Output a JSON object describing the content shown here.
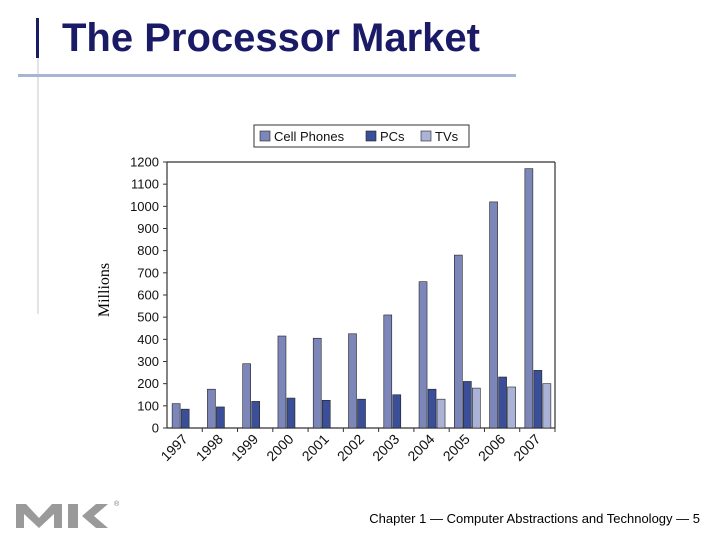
{
  "slide": {
    "title": "The Processor Market",
    "footer": "Chapter 1 — Computer Abstractions and Technology — 5",
    "logo_mark": "®"
  },
  "colors": {
    "title": "#1a1a66",
    "cell_phones": "#7d86b8",
    "pcs": "#3a4f98",
    "tvs": "#aab2d6"
  },
  "chart_data": {
    "type": "bar",
    "title": "",
    "ylabel": "Millions",
    "xlabel": "",
    "categories": [
      "1997",
      "1998",
      "1999",
      "2000",
      "2001",
      "2002",
      "2003",
      "2004",
      "2005",
      "2006",
      "2007"
    ],
    "series": [
      {
        "name": "Cell Phones",
        "values": [
          110,
          175,
          290,
          415,
          405,
          425,
          510,
          660,
          780,
          1020,
          1170
        ]
      },
      {
        "name": "PCs",
        "values": [
          85,
          95,
          120,
          135,
          125,
          130,
          150,
          175,
          210,
          230,
          260
        ]
      },
      {
        "name": "TVs",
        "values": [
          null,
          null,
          null,
          null,
          null,
          null,
          null,
          130,
          180,
          185,
          200
        ]
      }
    ],
    "yticks": [
      0,
      100,
      200,
      300,
      400,
      500,
      600,
      700,
      800,
      900,
      1000,
      1100,
      1200
    ],
    "ylim": [
      0,
      1200
    ],
    "legend_position": "top",
    "grid": false
  }
}
